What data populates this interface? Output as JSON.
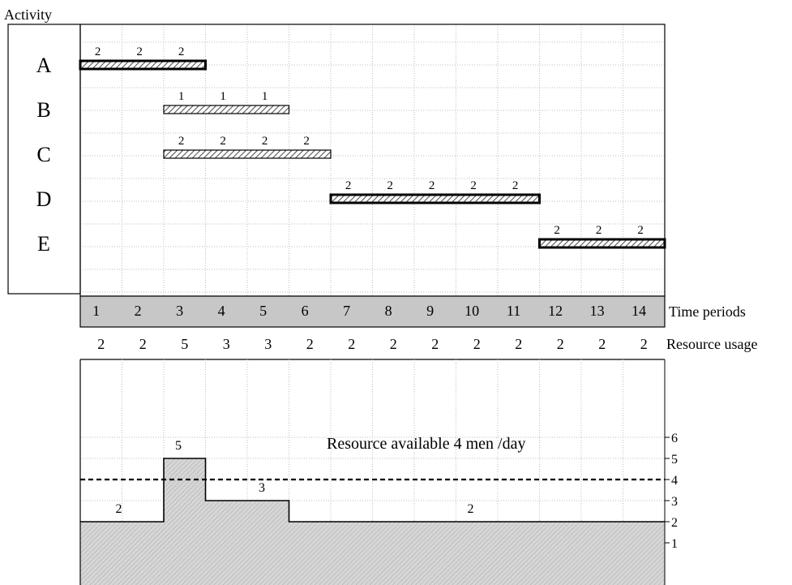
{
  "activity_header": "Activity",
  "activities": [
    {
      "label": "A",
      "start": 0,
      "end": 3,
      "per_day": [
        "2",
        "2",
        "2"
      ],
      "critical": true
    },
    {
      "label": "B",
      "start": 2,
      "end": 5,
      "per_day": [
        "1",
        "1",
        "1"
      ],
      "critical": false
    },
    {
      "label": "C",
      "start": 2,
      "end": 6,
      "per_day": [
        "2",
        "2",
        "2",
        "2"
      ],
      "critical": false
    },
    {
      "label": "D",
      "start": 6,
      "end": 11,
      "per_day": [
        "2",
        "2",
        "2",
        "2",
        "2"
      ],
      "critical": true
    },
    {
      "label": "E",
      "start": 11,
      "end": 14,
      "per_day": [
        "2",
        "2",
        "2"
      ],
      "critical": true
    }
  ],
  "periods": [
    "1",
    "2",
    "3",
    "4",
    "5",
    "6",
    "7",
    "8",
    "9",
    "10",
    "11",
    "12",
    "13",
    "14"
  ],
  "periods_label": "Time periods",
  "usage": [
    "2",
    "2",
    "5",
    "3",
    "3",
    "2",
    "2",
    "2",
    "2",
    "2",
    "2",
    "2",
    "2",
    "2"
  ],
  "usage_label": "Resource usage",
  "histogram": {
    "y_ticks": [
      "1",
      "2",
      "3",
      "4",
      "5",
      "6"
    ],
    "profile": [
      2,
      2,
      5,
      3,
      3,
      2,
      2,
      2,
      2,
      2,
      2,
      2,
      2,
      2
    ],
    "limit": 4,
    "limit_label": "Resource available 4 men /day",
    "peak_labels": [
      {
        "period": 2,
        "text": "2"
      },
      {
        "period": 3,
        "text": "5"
      },
      {
        "period": 5,
        "text": "3"
      },
      {
        "period": 10,
        "text": "2"
      }
    ]
  }
}
